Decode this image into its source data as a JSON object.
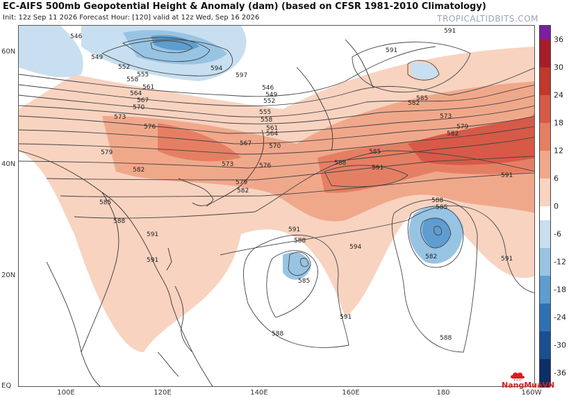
{
  "header": {
    "title": "EC-AIFS 500mb Geopotential Height & Anomaly (dam) (based on CFSR 1981-2010 Climatology)",
    "subtitle": "Init: 12z Sep 11 2026   Forecast Hour: [120]   valid at 12z Wed, Sep 16 2026",
    "brand": "TROPICALTIDBITS.COM"
  },
  "axes": {
    "lat_labels": [
      "60N",
      "40N",
      "20N",
      "EQ"
    ],
    "lon_labels": [
      "100E",
      "120E",
      "140E",
      "160E",
      "180",
      "160W"
    ]
  },
  "colorbar": {
    "labels": [
      "36",
      "30",
      "24",
      "18",
      "12",
      "6",
      "0",
      "-6",
      "-12",
      "-18",
      "-24",
      "-30",
      "-36"
    ],
    "colors": [
      "#7a1fa2",
      "#a51e2a",
      "#c0392b",
      "#d65a47",
      "#e57f63",
      "#f0a88b",
      "#f8d3c0",
      "#ffffff",
      "#c7dff0",
      "#98c4e4",
      "#5e9dcf",
      "#2f72b4",
      "#1a4f91",
      "#0c2f66"
    ]
  },
  "contour_labels": [
    {
      "text": "546"
    },
    {
      "text": "549"
    },
    {
      "text": "552"
    },
    {
      "text": "555"
    },
    {
      "text": "558"
    },
    {
      "text": "561"
    },
    {
      "text": "564"
    },
    {
      "text": "567"
    },
    {
      "text": "570"
    },
    {
      "text": "573"
    },
    {
      "text": "576"
    },
    {
      "text": "579"
    },
    {
      "text": "582"
    },
    {
      "text": "585"
    },
    {
      "text": "588"
    },
    {
      "text": "591"
    },
    {
      "text": "594"
    },
    {
      "text": "597"
    },
    {
      "text": "546"
    },
    {
      "text": "549"
    },
    {
      "text": "552"
    },
    {
      "text": "555"
    },
    {
      "text": "558"
    },
    {
      "text": "561"
    },
    {
      "text": "564"
    },
    {
      "text": "567"
    },
    {
      "text": "570"
    },
    {
      "text": "573"
    },
    {
      "text": "576"
    },
    {
      "text": "579"
    },
    {
      "text": "582"
    },
    {
      "text": "585"
    },
    {
      "text": "588"
    },
    {
      "text": "591"
    },
    {
      "text": "591"
    },
    {
      "text": "594"
    },
    {
      "text": "591"
    },
    {
      "text": "588"
    },
    {
      "text": "585"
    },
    {
      "text": "591"
    },
    {
      "text": "588"
    },
    {
      "text": "588"
    },
    {
      "text": "585"
    },
    {
      "text": "582"
    },
    {
      "text": "591"
    },
    {
      "text": "591"
    },
    {
      "text": "582"
    },
    {
      "text": "585"
    },
    {
      "text": "588"
    },
    {
      "text": "591"
    },
    {
      "text": "591"
    },
    {
      "text": "573"
    },
    {
      "text": "579"
    },
    {
      "text": "582"
    }
  ],
  "watermark": {
    "text": "NangMuaVN"
  }
}
